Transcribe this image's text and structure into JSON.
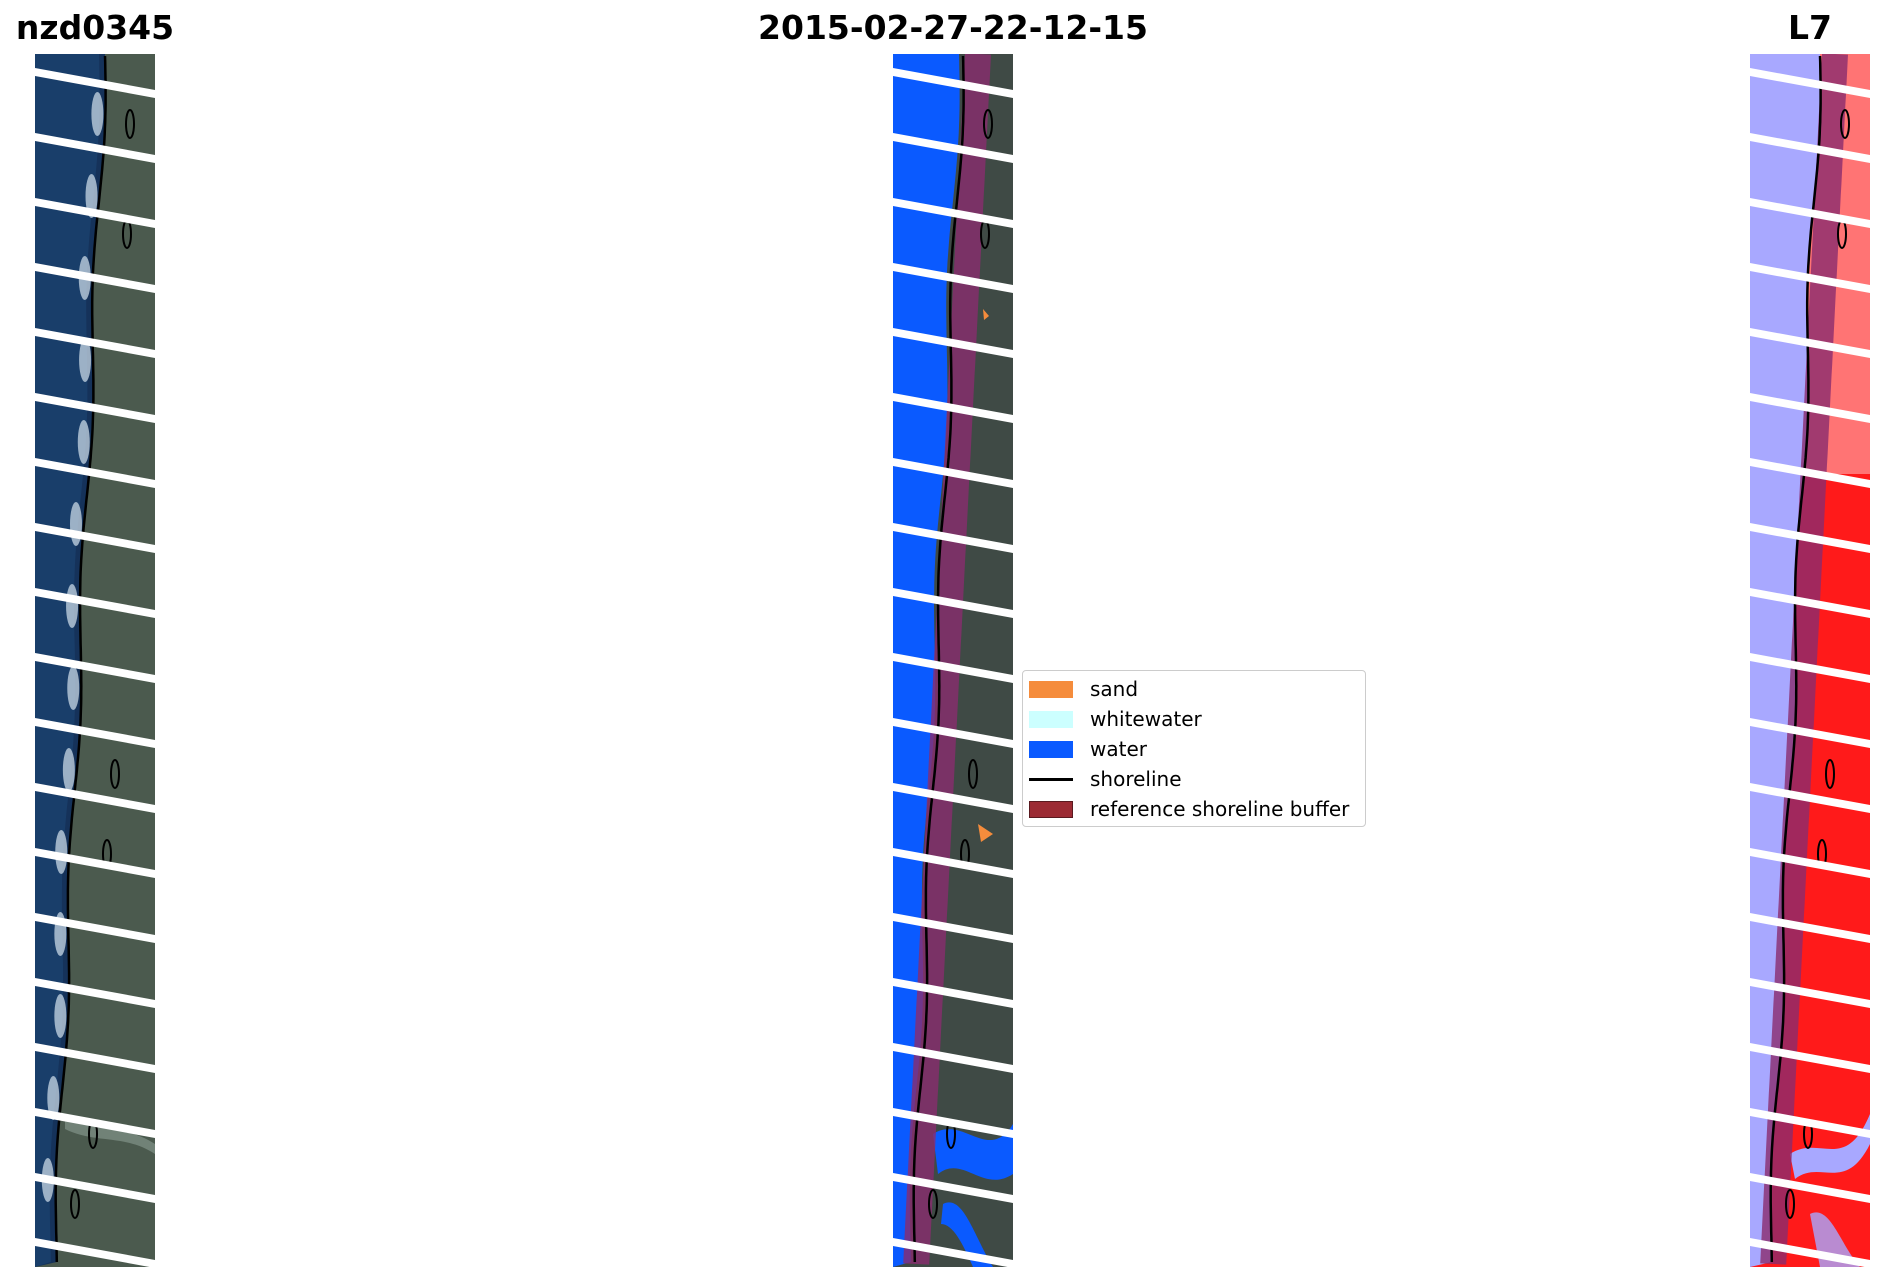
{
  "titles": {
    "left": "nzd0345",
    "center": "2015-02-27-22-12-15",
    "right": "L7"
  },
  "legend": {
    "items": [
      {
        "label": "sand",
        "color": "#f58c3c",
        "kind": "patch"
      },
      {
        "label": "whitewater",
        "color": "#ccffff",
        "kind": "patch"
      },
      {
        "label": "water",
        "color": "#0a5aff",
        "kind": "patch"
      },
      {
        "label": "shoreline",
        "color": "#000000",
        "kind": "line"
      },
      {
        "label": "reference shoreline buffer",
        "color": "#9c2b34",
        "kind": "patch"
      }
    ]
  },
  "colors": {
    "ocean_rgb": "#15325a",
    "land_rgb": "#4b5a4e",
    "surf": "#c8d8e6",
    "classified_water": "#0a5aff",
    "buffer": "#8a2c6e",
    "index_water": "#a8a8ff",
    "index_land": "#ff1a1a"
  }
}
